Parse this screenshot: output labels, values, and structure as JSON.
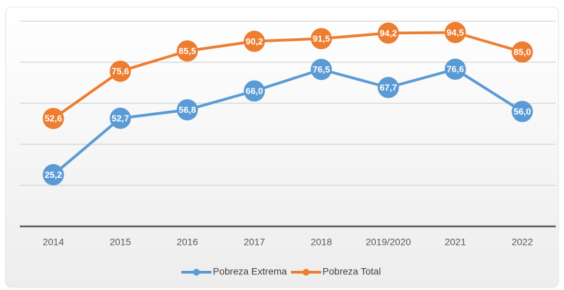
{
  "chart_data": {
    "type": "line",
    "categories": [
      "2014",
      "2015",
      "2016",
      "2017",
      "2018",
      "2019/2020",
      "2021",
      "2022"
    ],
    "series": [
      {
        "name": "Pobreza Extrema",
        "color": "#5b9bd5",
        "values": [
          25.2,
          52.7,
          56.8,
          66.0,
          76.5,
          67.7,
          76.6,
          56.0
        ],
        "value_labels": [
          "25,2",
          "52,7",
          "56,8",
          "66,0",
          "76,5",
          "67,7",
          "76,6",
          "56,0"
        ]
      },
      {
        "name": "Pobreza Total",
        "color": "#ed7d31",
        "values": [
          52.6,
          75.6,
          85.5,
          90.2,
          91.5,
          94.2,
          94.5,
          85.0
        ],
        "value_labels": [
          "52,6",
          "75,6",
          "85,5",
          "90,2",
          "91,5",
          "94,2",
          "94,5",
          "85,0"
        ]
      }
    ],
    "ylim": [
      0,
      100
    ],
    "yticks": [
      0,
      20,
      40,
      60,
      80,
      100
    ],
    "grid": true,
    "legend": "bottom"
  }
}
